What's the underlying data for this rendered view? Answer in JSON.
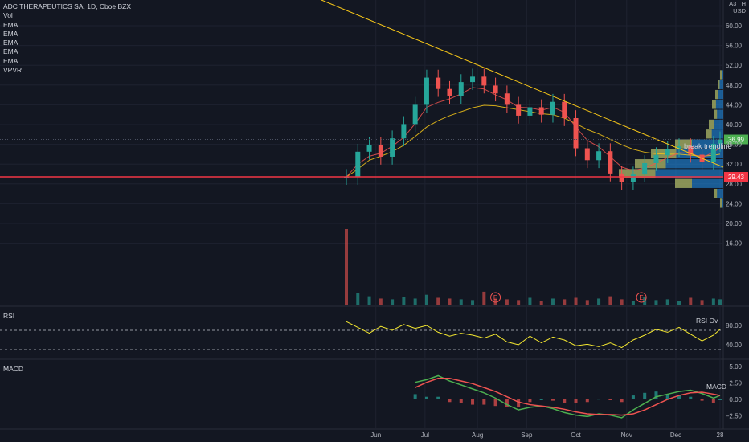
{
  "header": {
    "symbol_line": "ADC THERAPEUTICS SA, 1D, Cboe BZX",
    "indicators": [
      "Vol",
      "EMA",
      "EMA",
      "EMA",
      "EMA",
      "EMA",
      "VPVR"
    ]
  },
  "price_axis": {
    "currency_lines": [
      "A3 I H",
      "USD"
    ],
    "ticks": [
      "60.00",
      "56.00",
      "52.00",
      "48.00",
      "44.00",
      "40.00",
      "36.00",
      "32.00",
      "28.00",
      "24.00",
      "20.00",
      "16.00"
    ],
    "last_price": "36.99",
    "hline_price": "29.43",
    "last_price_color": "#4caf50",
    "hline_color": "#f23645"
  },
  "time_axis": {
    "ticks": [
      "Jun",
      "Jul",
      "Aug",
      "Sep",
      "Oct",
      "Nov",
      "Dec",
      "28"
    ]
  },
  "annotations": {
    "trendline_text": "break trendline",
    "earnings_marker": "E"
  },
  "rsi": {
    "title": "RSI",
    "legend": "RSI Ov",
    "ticks": [
      "80.00",
      "40.00"
    ],
    "band_upper": 70,
    "band_lower": 30
  },
  "macd": {
    "title": "MACD",
    "legend": "MACD",
    "ticks": [
      "5.00",
      "2.50",
      "0.00",
      "−2.50"
    ]
  },
  "colors": {
    "bg": "#131722",
    "up": "#26a69a",
    "down": "#ef5350",
    "trend": "#f5c518",
    "grid": "#1e2230"
  },
  "chart_data": [
    {
      "type": "candlestick",
      "ylim": [
        12,
        64
      ],
      "x": [
        "2021-05-14",
        "2021-05-21",
        "2021-05-28",
        "2021-06-04",
        "2021-06-11",
        "2021-06-18",
        "2021-06-25",
        "2021-07-02",
        "2021-07-09",
        "2021-07-16",
        "2021-07-23",
        "2021-07-30",
        "2021-08-06",
        "2021-08-13",
        "2021-08-20",
        "2021-08-27",
        "2021-09-03",
        "2021-09-10",
        "2021-09-17",
        "2021-09-24",
        "2021-10-01",
        "2021-10-08",
        "2021-10-15",
        "2021-10-22",
        "2021-10-29",
        "2021-11-05",
        "2021-11-12",
        "2021-11-19",
        "2021-11-26",
        "2021-12-03",
        "2021-12-10",
        "2021-12-17",
        "2021-12-24",
        "2021-12-28"
      ],
      "close": [
        29.4,
        34.5,
        35.8,
        33.5,
        37.2,
        40.1,
        44.0,
        49.5,
        47.2,
        45.8,
        48.6,
        49.7,
        47.9,
        46.3,
        44.0,
        41.8,
        43.5,
        42.0,
        44.6,
        41.3,
        35.2,
        32.8,
        34.6,
        30.1,
        28.3,
        29.9,
        32.2,
        33.8,
        35.1,
        35.6,
        33.9,
        32.4,
        36.1,
        36.99
      ],
      "series": [
        {
          "name": "",
          "values": [
            29.4,
            31.0,
            32.8,
            33.6,
            34.5,
            35.8,
            37.6,
            39.5,
            40.8,
            41.8,
            42.6,
            43.4,
            43.9,
            43.8,
            43.4,
            43.0,
            42.6,
            42.2,
            42.0,
            41.3,
            40.2,
            39.0,
            38.1,
            37.0,
            35.9,
            35.0,
            34.4,
            34.1,
            34.0,
            34.0,
            33.8,
            33.6,
            33.8,
            34.0
          ]
        },
        {
          "name": "",
          "values": [
            29.4,
            32.0,
            33.6,
            34.2,
            35.6,
            37.4,
            40.2,
            43.5,
            44.5,
            45.2,
            46.2,
            47.5,
            47.2,
            46.0,
            45.0,
            43.5,
            43.4,
            42.9,
            43.5,
            42.5,
            39.5,
            36.8,
            35.5,
            33.5,
            31.4,
            30.7,
            31.2,
            32.2,
            33.3,
            34.3,
            34.2,
            33.3,
            34.4,
            35.3
          ]
        }
      ]
    },
    {
      "type": "bar",
      "title": "Vol",
      "x": [
        "2021-05-14",
        "2021-05-21",
        "2021-05-28",
        "2021-06-04",
        "2021-06-11",
        "2021-06-18",
        "2021-06-25",
        "2021-07-02",
        "2021-07-09",
        "2021-07-16",
        "2021-07-23",
        "2021-07-30",
        "2021-08-06",
        "2021-08-13",
        "2021-08-20",
        "2021-08-27",
        "2021-09-03",
        "2021-09-10",
        "2021-09-17",
        "2021-09-24",
        "2021-10-01",
        "2021-10-08",
        "2021-10-15",
        "2021-10-22",
        "2021-10-29",
        "2021-11-05",
        "2021-11-12",
        "2021-11-19",
        "2021-11-26",
        "2021-12-03",
        "2021-12-10",
        "2021-12-17",
        "2021-12-24",
        "2021-12-28"
      ],
      "values": [
        100,
        16,
        12,
        9,
        8,
        11,
        9,
        14,
        10,
        9,
        8,
        7,
        18,
        9,
        8,
        7,
        10,
        6,
        9,
        8,
        10,
        7,
        9,
        12,
        8,
        6,
        11,
        7,
        8,
        6,
        10,
        7,
        9,
        8
      ]
    },
    {
      "type": "line",
      "title": "RSI",
      "ylim": [
        20,
        100
      ],
      "x": [
        "2021-05-14",
        "2021-05-21",
        "2021-05-28",
        "2021-06-04",
        "2021-06-11",
        "2021-06-18",
        "2021-06-25",
        "2021-07-02",
        "2021-07-09",
        "2021-07-16",
        "2021-07-23",
        "2021-07-30",
        "2021-08-06",
        "2021-08-13",
        "2021-08-20",
        "2021-08-27",
        "2021-09-03",
        "2021-09-10",
        "2021-09-17",
        "2021-09-24",
        "2021-10-01",
        "2021-10-08",
        "2021-10-15",
        "2021-10-22",
        "2021-10-29",
        "2021-11-05",
        "2021-11-12",
        "2021-11-19",
        "2021-11-26",
        "2021-12-03",
        "2021-12-10",
        "2021-12-17",
        "2021-12-24",
        "2021-12-28"
      ],
      "values": [
        88,
        76,
        64,
        78,
        70,
        82,
        74,
        80,
        66,
        58,
        64,
        60,
        54,
        62,
        46,
        40,
        58,
        44,
        56,
        50,
        38,
        41,
        36,
        44,
        34,
        50,
        60,
        72,
        66,
        76,
        62,
        48,
        60,
        72
      ]
    },
    {
      "type": "line",
      "title": "MACD",
      "ylim": [
        -3.5,
        6
      ],
      "x": [
        "2021-06-25",
        "2021-07-02",
        "2021-07-09",
        "2021-07-16",
        "2021-07-23",
        "2021-07-30",
        "2021-08-06",
        "2021-08-13",
        "2021-08-20",
        "2021-08-27",
        "2021-09-03",
        "2021-09-10",
        "2021-09-17",
        "2021-09-24",
        "2021-10-01",
        "2021-10-08",
        "2021-10-15",
        "2021-10-22",
        "2021-10-29",
        "2021-11-05",
        "2021-11-12",
        "2021-11-19",
        "2021-11-26",
        "2021-12-03",
        "2021-12-10",
        "2021-12-17",
        "2021-12-24",
        "2021-12-28"
      ],
      "series": [
        {
          "name": "MACD",
          "values": [
            2.6,
            3.0,
            3.6,
            2.8,
            2.2,
            1.6,
            1.0,
            0.2,
            -0.8,
            -1.6,
            -1.2,
            -1.0,
            -1.4,
            -2.0,
            -2.4,
            -2.6,
            -2.2,
            -2.4,
            -2.8,
            -1.6,
            -0.6,
            0.4,
            0.8,
            1.2,
            1.4,
            0.9,
            0.2,
            0.6
          ]
        },
        {
          "name": "",
          "values": [
            1.8,
            2.6,
            3.2,
            3.2,
            2.8,
            2.4,
            1.8,
            1.2,
            0.4,
            -0.4,
            -0.8,
            -1.0,
            -1.2,
            -1.5,
            -1.9,
            -2.2,
            -2.3,
            -2.3,
            -2.4,
            -2.2,
            -1.6,
            -0.8,
            0.0,
            0.6,
            1.0,
            1.1,
            0.8,
            0.6
          ]
        }
      ]
    }
  ]
}
